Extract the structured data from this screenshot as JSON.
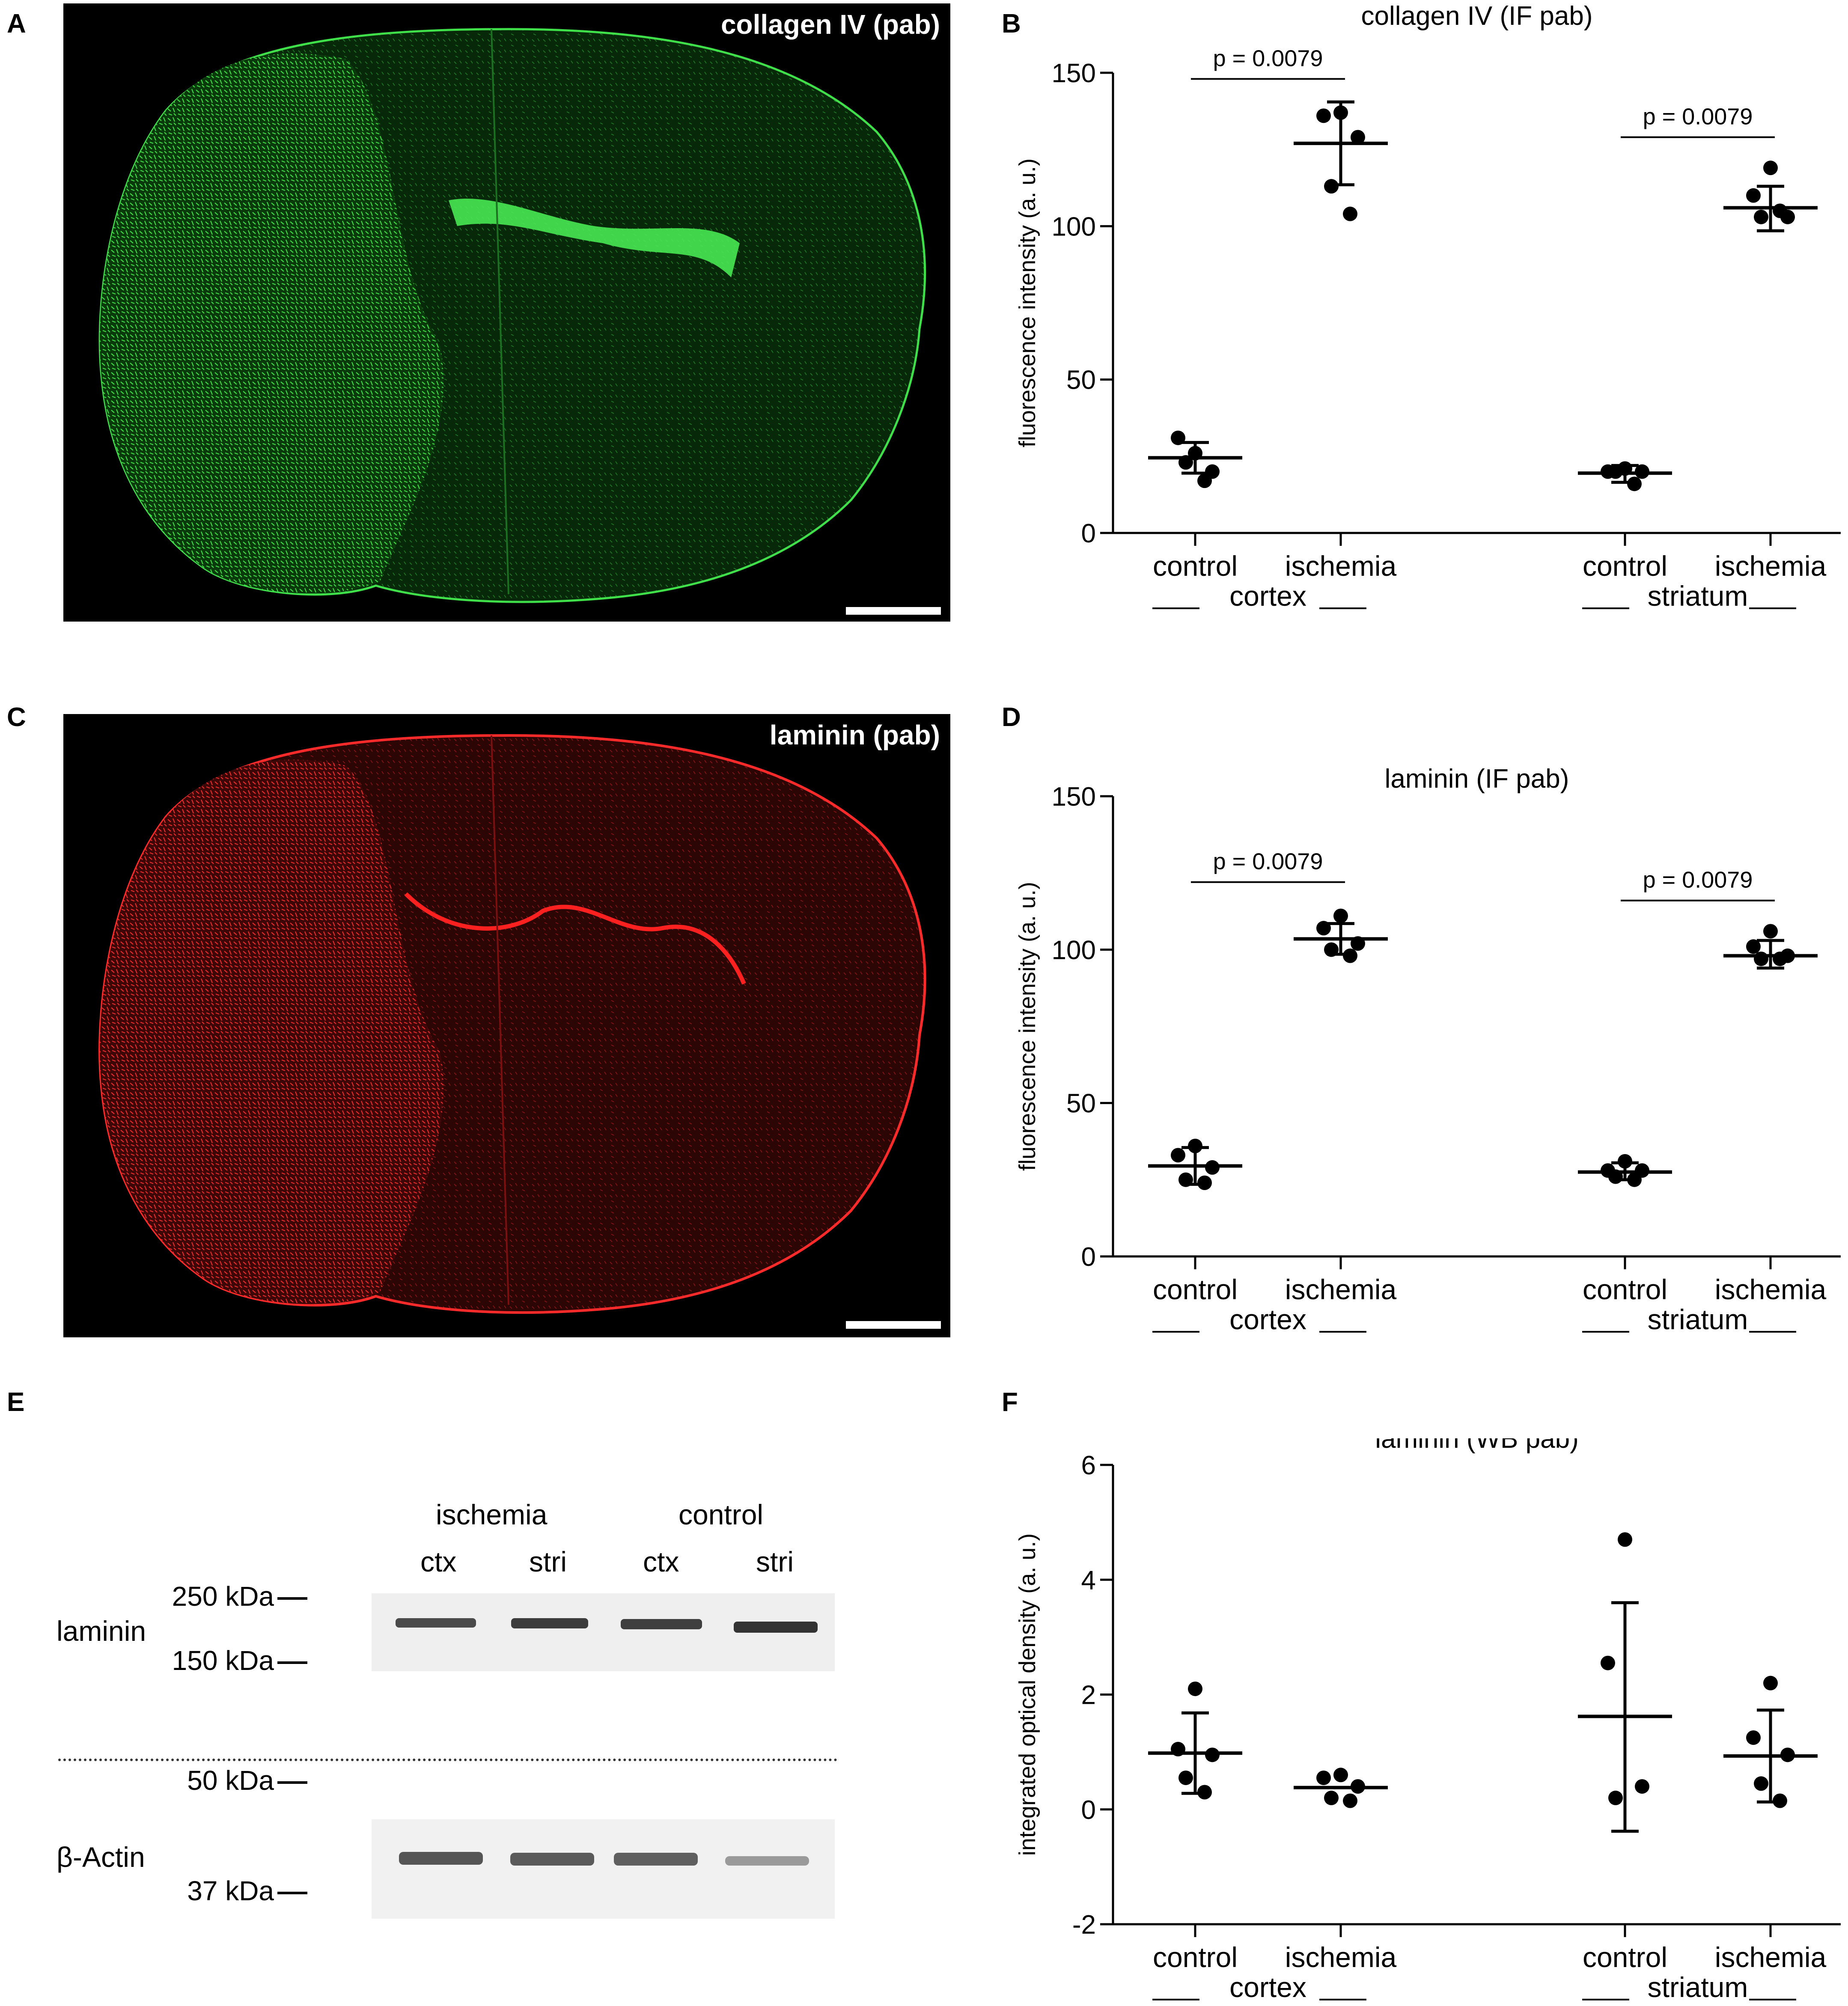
{
  "panels": {
    "A": {
      "letter": "A",
      "title": "collagen IV (pab)",
      "tint": "#19c82a"
    },
    "B": {
      "letter": "B"
    },
    "C": {
      "letter": "C",
      "title": "laminin (pab)",
      "tint": "#e01515"
    },
    "D": {
      "letter": "D"
    },
    "E": {
      "letter": "E"
    },
    "F": {
      "letter": "F"
    }
  },
  "western_blot": {
    "group_headers": [
      "ischemia",
      "control"
    ],
    "lane_labels": [
      "ctx",
      "stri",
      "ctx",
      "stri"
    ],
    "row_labels": {
      "laminin": "laminin",
      "actin": "β-Actin"
    },
    "markers": {
      "m250": "250 kDa",
      "m150": "150 kDa",
      "m50": "50 kDa",
      "m37": "37 kDa"
    }
  },
  "chart_data": [
    {
      "id": "B",
      "type": "scatter",
      "title": "collagen IV (IF pab)",
      "ylabel": "fluorescence intensity (a. u.)",
      "ylim": [
        0,
        150
      ],
      "yticks": [
        0,
        50,
        100,
        150
      ],
      "categories": [
        "control",
        "ischemia",
        "control",
        "ischemia"
      ],
      "groups": [
        {
          "label": "cortex",
          "categories": [
            0,
            1
          ]
        },
        {
          "label": "striatum",
          "categories": [
            2,
            3
          ]
        }
      ],
      "series": [
        {
          "category": 0,
          "points": [
            26,
            31,
            20,
            23,
            17
          ],
          "mean": 24.5,
          "sd_low": 19.5,
          "sd_high": 29.5
        },
        {
          "category": 1,
          "points": [
            137,
            136,
            129,
            113,
            104
          ],
          "mean": 127,
          "sd_low": 113.5,
          "sd_high": 140.5
        },
        {
          "category": 2,
          "points": [
            21,
            20,
            20,
            20,
            16
          ],
          "mean": 19.5,
          "sd_low": 16.5,
          "sd_high": 22
        },
        {
          "category": 3,
          "points": [
            119,
            110,
            103,
            103,
            105
          ],
          "mean": 106,
          "sd_low": 98.5,
          "sd_high": 113
        }
      ],
      "annotations": [
        {
          "text": "p = 0.0079",
          "from": 0,
          "to": 1,
          "y": 148
        },
        {
          "text": "p = 0.0079",
          "from": 2,
          "to": 3,
          "y": 129
        }
      ]
    },
    {
      "id": "D",
      "type": "scatter",
      "title": "laminin (IF pab)",
      "ylabel": "fluorescence intensity (a. u.)",
      "ylim": [
        0,
        150
      ],
      "yticks": [
        0,
        50,
        100,
        150
      ],
      "categories": [
        "control",
        "ischemia",
        "control",
        "ischemia"
      ],
      "groups": [
        {
          "label": "cortex",
          "categories": [
            0,
            1
          ]
        },
        {
          "label": "striatum",
          "categories": [
            2,
            3
          ]
        }
      ],
      "series": [
        {
          "category": 0,
          "points": [
            36,
            33,
            29,
            25,
            24
          ],
          "mean": 29.5,
          "sd_low": 23.5,
          "sd_high": 35.5
        },
        {
          "category": 1,
          "points": [
            111,
            107,
            102,
            100,
            98
          ],
          "mean": 103.5,
          "sd_low": 98.5,
          "sd_high": 108.5
        },
        {
          "category": 2,
          "points": [
            31,
            28,
            28,
            26,
            25
          ],
          "mean": 27.5,
          "sd_low": 25,
          "sd_high": 30.5
        },
        {
          "category": 3,
          "points": [
            106,
            101,
            98,
            97,
            97
          ],
          "mean": 98,
          "sd_low": 94,
          "sd_high": 103
        }
      ],
      "annotations": [
        {
          "text": "p = 0.0079",
          "from": 0,
          "to": 1,
          "y": 122
        },
        {
          "text": "p = 0.0079",
          "from": 2,
          "to": 3,
          "y": 116
        }
      ]
    },
    {
      "id": "F",
      "type": "scatter",
      "title": "laminin (WB pab)",
      "ylabel": "integrated optical density (a. u.)",
      "ylim": [
        -2,
        6
      ],
      "yticks": [
        -2,
        0,
        2,
        4,
        6
      ],
      "categories": [
        "control",
        "ischemia",
        "control",
        "ischemia"
      ],
      "groups": [
        {
          "label": "cortex",
          "categories": [
            0,
            1
          ]
        },
        {
          "label": "striatum",
          "categories": [
            2,
            3
          ]
        }
      ],
      "series": [
        {
          "category": 0,
          "points": [
            2.1,
            1.05,
            0.95,
            0.55,
            0.3
          ],
          "mean": 0.98,
          "sd_low": 0.28,
          "sd_high": 1.68
        },
        {
          "category": 1,
          "points": [
            0.6,
            0.55,
            0.4,
            0.2,
            0.15
          ],
          "mean": 0.38,
          "sd_low": 0.38,
          "sd_high": 0.38
        },
        {
          "category": 2,
          "points": [
            4.7,
            2.55,
            0.4,
            0.2
          ],
          "mean": 1.62,
          "sd_low": -0.38,
          "sd_high": 3.6
        },
        {
          "category": 3,
          "points": [
            2.2,
            1.25,
            0.95,
            0.45,
            0.15
          ],
          "mean": 0.93,
          "sd_low": 0.13,
          "sd_high": 1.73
        }
      ],
      "annotations": []
    }
  ]
}
